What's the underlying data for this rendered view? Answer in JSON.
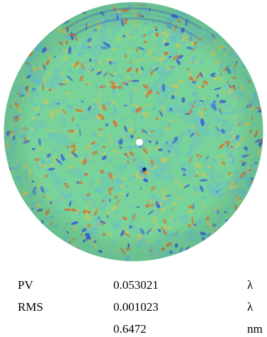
{
  "chart_data": {
    "type": "heatmap",
    "description_shape": "circular",
    "colors": {
      "background": "#ffffff",
      "base": "#78d39a",
      "high": "#d9702f",
      "warm": "#d9c64d",
      "low": "#3b5fd6",
      "cool": "#62b8d8",
      "center_hole": "#ffffff"
    },
    "metrics": [
      {
        "label": "PV",
        "value": "0.053021",
        "unit": "λ"
      },
      {
        "label": "RMS",
        "value": "0.001023",
        "unit": "λ"
      },
      {
        "label": "",
        "value": "0.6472",
        "unit": "nm"
      }
    ]
  }
}
